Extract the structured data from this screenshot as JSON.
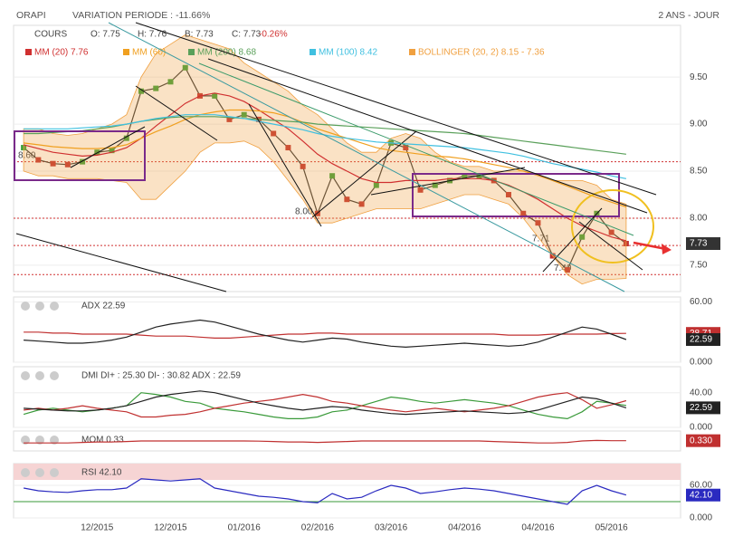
{
  "header": {
    "title": "ORAPI",
    "variation": "VARIATION PERIODE : -11.66%",
    "period": "2 ANS - JOUR"
  },
  "chart_data": [
    {
      "type": "line",
      "categories": [
        null,
        null,
        null,
        null,
        null,
        "12/2015",
        null,
        null,
        null,
        null,
        "12/2015",
        null,
        null,
        null,
        null,
        "01/2016",
        null,
        null,
        null,
        null,
        "02/2016",
        null,
        null,
        null,
        null,
        "03/2016",
        null,
        null,
        null,
        null,
        "04/2016",
        null,
        null,
        null,
        null,
        "04/2016",
        null,
        null,
        null,
        null,
        "05/2016",
        null
      ],
      "ylim": [
        7.22,
        10.05
      ],
      "yticks": [
        {
          "value": 7.5,
          "label": "7.50"
        },
        {
          "value": 8,
          "label": "8.00"
        },
        {
          "value": 8.5,
          "label": "8.50"
        },
        {
          "value": 9,
          "label": "9.00"
        },
        {
          "value": 9.5,
          "label": "9.50"
        }
      ],
      "grid": true,
      "ohlc_labels": [
        "O: 7.75",
        "H: 7.76",
        "B: 7.73",
        "C: 7.73"
      ],
      "change": "-0.26%",
      "levels": [
        {
          "value": 8.6,
          "label": "8.60"
        },
        {
          "value": 8.0,
          "label": "8.00"
        },
        {
          "value": 7.71,
          "label": "7.71"
        },
        {
          "value": 7.4,
          "label": "7.40"
        }
      ],
      "series": [
        {
          "name": "COURS",
          "color": "#333333",
          "last_label": "7.73",
          "values": [
            8.75,
            8.62,
            8.58,
            8.57,
            8.6,
            8.7,
            8.72,
            8.85,
            9.35,
            9.38,
            9.45,
            9.6,
            9.3,
            9.3,
            9.05,
            9.1,
            9.05,
            8.9,
            8.75,
            8.55,
            8.05,
            8.45,
            8.2,
            8.15,
            8.35,
            8.8,
            8.75,
            8.3,
            8.35,
            8.4,
            8.45,
            8.45,
            8.4,
            8.25,
            8.05,
            7.95,
            7.6,
            7.45,
            7.8,
            8.05,
            7.85,
            7.73
          ]
        },
        {
          "name": "BOLLINGER (20, 2) 8.15 - 7.36",
          "type": "band",
          "color": "#f0a040",
          "upper": [
            8.95,
            8.95,
            8.9,
            8.88,
            8.9,
            8.95,
            9.0,
            9.1,
            9.5,
            9.75,
            9.85,
            9.95,
            9.9,
            9.85,
            9.8,
            9.65,
            9.55,
            9.45,
            9.35,
            9.2,
            9.1,
            8.95,
            8.8,
            8.7,
            8.7,
            8.85,
            8.9,
            8.85,
            8.7,
            8.6,
            8.55,
            8.55,
            8.5,
            8.5,
            8.5,
            8.45,
            8.4,
            8.4,
            8.4,
            8.35,
            8.2,
            8.15
          ],
          "lower": [
            8.5,
            8.45,
            8.45,
            8.42,
            8.42,
            8.42,
            8.4,
            8.38,
            8.2,
            8.2,
            8.35,
            8.5,
            8.7,
            8.8,
            8.8,
            8.82,
            8.75,
            8.6,
            8.4,
            8.2,
            7.95,
            7.95,
            8.0,
            8.05,
            8.1,
            8.1,
            8.1,
            8.1,
            8.15,
            8.2,
            8.25,
            8.25,
            8.2,
            8.15,
            8.0,
            7.8,
            7.6,
            7.4,
            7.3,
            7.35,
            7.35,
            7.36
          ]
        },
        {
          "name": "MM (20) 7.76",
          "color": "#d03030",
          "values": [
            8.78,
            8.74,
            8.7,
            8.68,
            8.66,
            8.67,
            8.7,
            8.75,
            8.85,
            8.98,
            9.1,
            9.22,
            9.3,
            9.33,
            9.3,
            9.24,
            9.15,
            9.05,
            8.95,
            8.82,
            8.68,
            8.58,
            8.5,
            8.42,
            8.38,
            8.38,
            8.4,
            8.4,
            8.4,
            8.42,
            8.42,
            8.42,
            8.4,
            8.35,
            8.28,
            8.2,
            8.1,
            8.0,
            7.92,
            7.86,
            7.8,
            7.76
          ]
        },
        {
          "name": "MM (60)",
          "color": "#f0a020",
          "values": [
            8.8,
            8.78,
            8.76,
            8.75,
            8.74,
            8.74,
            8.75,
            8.78,
            8.85,
            8.92,
            8.98,
            9.05,
            9.1,
            9.13,
            9.15,
            9.15,
            9.14,
            9.12,
            9.08,
            9.02,
            8.95,
            8.9,
            8.85,
            8.8,
            8.75,
            8.72,
            8.7,
            8.68,
            8.66,
            8.65,
            8.63,
            8.6,
            8.57,
            8.54,
            8.5,
            8.46,
            8.4,
            8.34,
            8.28,
            8.22,
            8.17,
            8.12
          ]
        },
        {
          "name": "MM (200) 8.68",
          "color": "#5aa05a",
          "values": [
            8.9,
            8.9,
            8.91,
            8.92,
            8.93,
            8.95,
            8.97,
            9.0,
            9.03,
            9.05,
            9.07,
            9.08,
            9.08,
            9.08,
            9.07,
            9.06,
            9.05,
            9.04,
            9.03,
            9.02,
            9.0,
            8.99,
            8.98,
            8.97,
            8.96,
            8.95,
            8.94,
            8.93,
            8.92,
            8.91,
            8.9,
            8.88,
            8.86,
            8.84,
            8.82,
            8.8,
            8.78,
            8.76,
            8.74,
            8.72,
            8.7,
            8.68
          ]
        },
        {
          "name": "MM (100) 8.42",
          "color": "#40c0e0",
          "values": [
            8.95,
            8.95,
            8.95,
            8.95,
            8.96,
            8.97,
            8.98,
            9.0,
            9.03,
            9.06,
            9.08,
            9.1,
            9.1,
            9.1,
            9.08,
            9.06,
            9.03,
            9.0,
            8.97,
            8.94,
            8.9,
            8.87,
            8.85,
            8.83,
            8.81,
            8.8,
            8.79,
            8.78,
            8.77,
            8.76,
            8.75,
            8.73,
            8.71,
            8.69,
            8.66,
            8.62,
            8.58,
            8.55,
            8.52,
            8.49,
            8.45,
            8.42
          ]
        }
      ]
    },
    {
      "type": "line",
      "label": "ADX 22.59",
      "ylim": [
        0,
        65
      ],
      "yticks": [
        {
          "value": 60,
          "label": "60.00"
        },
        {
          "value": 0,
          "label": "0.000"
        }
      ],
      "series": [
        {
          "color": "#c03030",
          "last_label": "28.71",
          "values": [
            30,
            30,
            29,
            29,
            28,
            28,
            28,
            28,
            27,
            26,
            26,
            26,
            25,
            24,
            24,
            25,
            26,
            27,
            28,
            28,
            29,
            29,
            28,
            28,
            28,
            28,
            28,
            28,
            28,
            28,
            28,
            28,
            28,
            27,
            27,
            27,
            28,
            28,
            28,
            28,
            28.5,
            28.71
          ]
        },
        {
          "color": "#222222",
          "last_label": "22.59",
          "values": [
            22,
            21,
            20,
            19,
            19,
            20,
            22,
            25,
            30,
            35,
            38,
            40,
            42,
            40,
            36,
            32,
            28,
            25,
            22,
            20,
            22,
            24,
            23,
            20,
            18,
            16,
            15,
            16,
            17,
            18,
            19,
            18,
            17,
            16,
            17,
            20,
            25,
            30,
            35,
            33,
            28,
            22.59
          ]
        }
      ]
    },
    {
      "type": "line",
      "label": "DMI DI+ : 25.30 DI- : 30.82 ADX : 22.59",
      "ylim": [
        0,
        70
      ],
      "yticks": [
        {
          "value": 40,
          "label": "40.00"
        },
        {
          "value": 0,
          "label": "0.000"
        }
      ],
      "series": [
        {
          "color": "#3a9a3a",
          "values": [
            15,
            20,
            22,
            20,
            18,
            20,
            22,
            25,
            40,
            38,
            35,
            30,
            28,
            22,
            20,
            18,
            15,
            12,
            10,
            10,
            12,
            18,
            20,
            25,
            30,
            35,
            33,
            30,
            28,
            30,
            32,
            30,
            28,
            25,
            20,
            15,
            12,
            10,
            18,
            30,
            28,
            25.3
          ]
        },
        {
          "color": "#c03030",
          "values": [
            20,
            22,
            20,
            22,
            25,
            22,
            20,
            18,
            12,
            12,
            14,
            15,
            18,
            22,
            25,
            28,
            30,
            32,
            35,
            38,
            35,
            30,
            28,
            25,
            22,
            20,
            18,
            20,
            22,
            20,
            18,
            20,
            22,
            25,
            30,
            35,
            38,
            40,
            32,
            22,
            26,
            30.82
          ]
        },
        {
          "color": "#222222",
          "last_label": "22.59",
          "values": [
            22,
            21,
            20,
            19,
            19,
            20,
            22,
            25,
            30,
            35,
            38,
            40,
            42,
            40,
            36,
            32,
            28,
            25,
            22,
            20,
            22,
            24,
            23,
            20,
            18,
            16,
            15,
            16,
            17,
            18,
            19,
            18,
            17,
            16,
            17,
            20,
            25,
            30,
            35,
            33,
            28,
            22.59
          ]
        }
      ]
    },
    {
      "type": "line",
      "label": "MOM 0.33",
      "ylim": [
        -0.7,
        1.3
      ],
      "series": [
        {
          "color": "#c03030",
          "last_label": "0.330",
          "values": [
            0.1,
            0.1,
            0.1,
            0.1,
            0.15,
            0.2,
            0.2,
            0.25,
            0.3,
            0.3,
            0.3,
            0.3,
            0.3,
            0.3,
            0.3,
            0.3,
            0.28,
            0.25,
            0.2,
            0.2,
            0.15,
            0.2,
            0.25,
            0.3,
            0.3,
            0.3,
            0.3,
            0.3,
            0.3,
            0.3,
            0.3,
            0.3,
            0.25,
            0.2,
            0.15,
            0.1,
            0.1,
            0.15,
            0.3,
            0.35,
            0.33,
            0.33
          ]
        }
      ]
    },
    {
      "type": "line",
      "label": "RSI 42.10",
      "ylim": [
        0,
        100
      ],
      "yticks": [
        {
          "value": 60,
          "label": "60.00"
        },
        {
          "value": 0,
          "label": "0.000"
        }
      ],
      "overbought": 70,
      "oversold": 30,
      "series": [
        {
          "color": "#2a2ac0",
          "last_label": "42.10",
          "values": [
            55,
            50,
            48,
            47,
            50,
            52,
            52,
            55,
            72,
            70,
            68,
            70,
            72,
            55,
            50,
            45,
            40,
            38,
            35,
            30,
            28,
            45,
            35,
            38,
            50,
            60,
            55,
            45,
            48,
            52,
            55,
            53,
            50,
            45,
            40,
            35,
            30,
            25,
            50,
            60,
            50,
            42.1
          ]
        }
      ]
    }
  ]
}
